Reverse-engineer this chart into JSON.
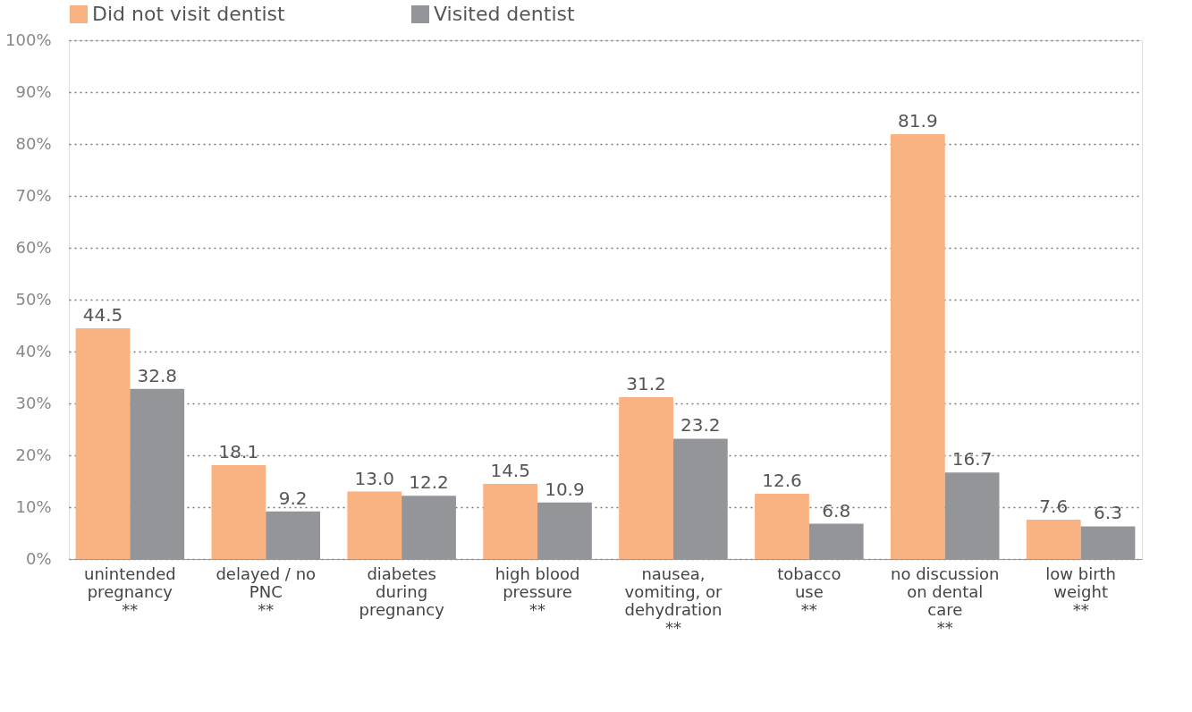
{
  "chart_data": {
    "type": "bar",
    "categories": [
      "unintended\npregnancy\n**",
      "delayed / no\nPNC\n**",
      "diabetes\nduring\npregnancy",
      "high blood\npressure\n**",
      "nausea,\nvomiting, or\ndehydration\n**",
      "tobacco\nuse\n**",
      "no discussion\non dental\ncare\n**",
      "low birth\nweight\n**"
    ],
    "series": [
      {
        "name": "Did not visit dentist",
        "color": "#f9b281",
        "values": [
          44.5,
          18.1,
          13.0,
          14.5,
          31.2,
          12.6,
          81.9,
          7.6
        ],
        "value_labels": [
          "44.5",
          "18.1",
          "13.0",
          "14.5",
          "31.2",
          "12.6",
          "81.9",
          "7.6"
        ]
      },
      {
        "name": "Visited dentist",
        "color": "#939598",
        "values": [
          32.8,
          9.2,
          12.2,
          10.9,
          23.2,
          6.8,
          16.7,
          6.3
        ],
        "value_labels": [
          "32.8",
          "9.2",
          "12.2",
          "10.9",
          "23.2",
          "6.8",
          "16.7",
          "6.3"
        ]
      }
    ],
    "ylim": [
      0,
      100
    ],
    "yticks": [
      {
        "value": 0,
        "label": "0%"
      },
      {
        "value": 10,
        "label": "10%"
      },
      {
        "value": 20,
        "label": "20%"
      },
      {
        "value": 30,
        "label": "30%"
      },
      {
        "value": 40,
        "label": "40%"
      },
      {
        "value": 50,
        "label": "50%"
      },
      {
        "value": 60,
        "label": "60%"
      },
      {
        "value": 70,
        "label": "70%"
      },
      {
        "value": 80,
        "label": "80%"
      },
      {
        "value": 90,
        "label": "90%"
      },
      {
        "value": 100,
        "label": "100%"
      }
    ],
    "grid": "y",
    "legend": "top"
  }
}
